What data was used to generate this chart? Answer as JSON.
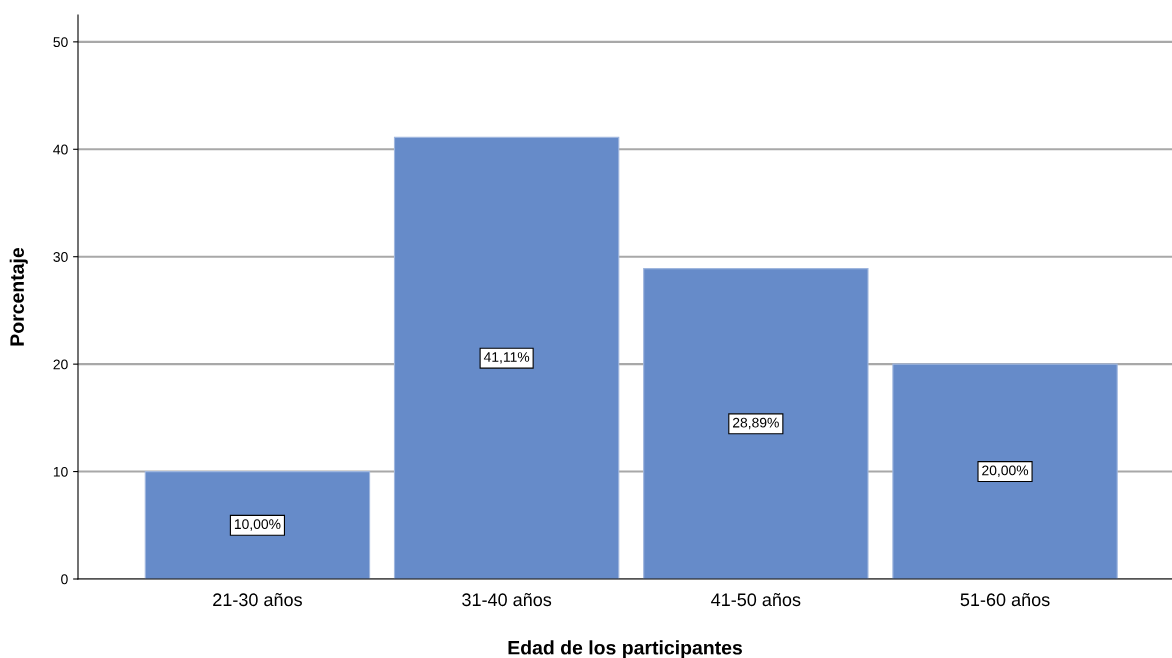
{
  "chart_data": {
    "type": "bar",
    "xlabel": "Edad de los participantes",
    "ylabel": "Porcentaje",
    "categories": [
      "21-30 años",
      "31-40 años",
      "41-50 años",
      "51-60 años"
    ],
    "values": [
      10.0,
      41.11,
      28.89,
      20.0
    ],
    "value_labels": [
      "10,00%",
      "41,11%",
      "28,89%",
      "20,00%"
    ],
    "color": "#668bc9",
    "ylim": [
      0,
      52.5
    ],
    "yticks": [
      0,
      10,
      20,
      30,
      40,
      50
    ],
    "grid": "y",
    "legend": false
  }
}
